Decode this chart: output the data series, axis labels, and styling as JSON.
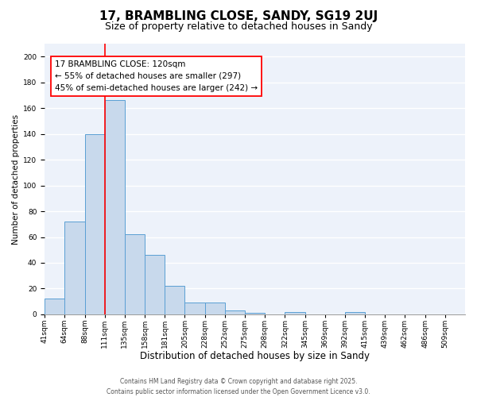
{
  "title": "17, BRAMBLING CLOSE, SANDY, SG19 2UJ",
  "subtitle": "Size of property relative to detached houses in Sandy",
  "xlabel": "Distribution of detached houses by size in Sandy",
  "ylabel": "Number of detached properties",
  "bar_values": [
    12,
    72,
    140,
    166,
    62,
    46,
    22,
    9,
    9,
    3,
    1,
    0,
    2,
    0,
    0,
    2
  ],
  "bin_labels": [
    "41sqm",
    "64sqm",
    "88sqm",
    "111sqm",
    "135sqm",
    "158sqm",
    "181sqm",
    "205sqm",
    "228sqm",
    "252sqm",
    "275sqm",
    "298sqm",
    "322sqm",
    "345sqm",
    "369sqm",
    "392sqm",
    "415sqm",
    "439sqm",
    "462sqm",
    "486sqm",
    "509sqm"
  ],
  "bar_color": "#c8d9ec",
  "bar_edge_color": "#5a9fd4",
  "vline_x": 3,
  "vline_color": "red",
  "annotation_text": "17 BRAMBLING CLOSE: 120sqm\n← 55% of detached houses are smaller (297)\n45% of semi-detached houses are larger (242) →",
  "annotation_box_color": "white",
  "annotation_box_edge_color": "red",
  "ylim": [
    0,
    210
  ],
  "yticks": [
    0,
    20,
    40,
    60,
    80,
    100,
    120,
    140,
    160,
    180,
    200
  ],
  "background_color": "#edf2fa",
  "grid_color": "white",
  "footer_line1": "Contains HM Land Registry data © Crown copyright and database right 2025.",
  "footer_line2": "Contains public sector information licensed under the Open Government Licence v3.0.",
  "title_fontsize": 11,
  "subtitle_fontsize": 9,
  "xlabel_fontsize": 8.5,
  "ylabel_fontsize": 7.5,
  "tick_fontsize": 6.5,
  "annotation_fontsize": 7.5,
  "footer_fontsize": 5.5
}
